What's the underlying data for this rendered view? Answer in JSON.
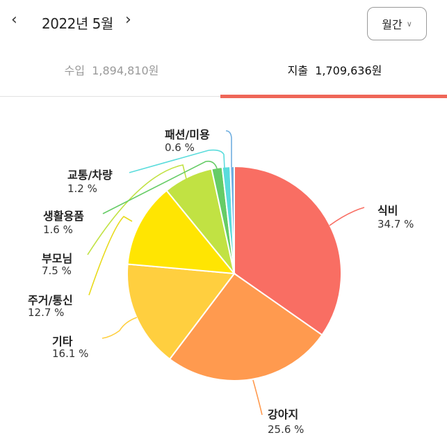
{
  "header": {
    "prev_icon": "chevron-left-icon",
    "month": "2022년 5월",
    "next_icon": "chevron-right-icon",
    "period": "월간",
    "period_icon": "chevron-down-icon"
  },
  "tabs": [
    {
      "label": "수입",
      "amount": "1,894,810원",
      "active": false
    },
    {
      "label": "지출",
      "amount": "1,709,636원",
      "active": true
    }
  ],
  "chart_data": {
    "type": "pie",
    "categories": [
      "식비",
      "강아지",
      "기타",
      "주거/통신",
      "부모님",
      "생활용품",
      "교통/차량",
      "패션/미용"
    ],
    "values": [
      34.7,
      25.6,
      16.1,
      12.7,
      7.5,
      1.6,
      1.2,
      0.6
    ],
    "labels": [
      "34.7 %",
      "25.6 %",
      "16.1 %",
      "12.7 %",
      "7.5 %",
      "1.6 %",
      "1.2 %",
      "0.6 %"
    ],
    "colors": [
      "#F96E63",
      "#FF9A4F",
      "#FFCF3F",
      "#FFE502",
      "#C1E243",
      "#66CC66",
      "#5ADCDC",
      "#6FAEE0"
    ],
    "start": "top",
    "direction": "clockwise"
  },
  "accent": "#EF6658"
}
